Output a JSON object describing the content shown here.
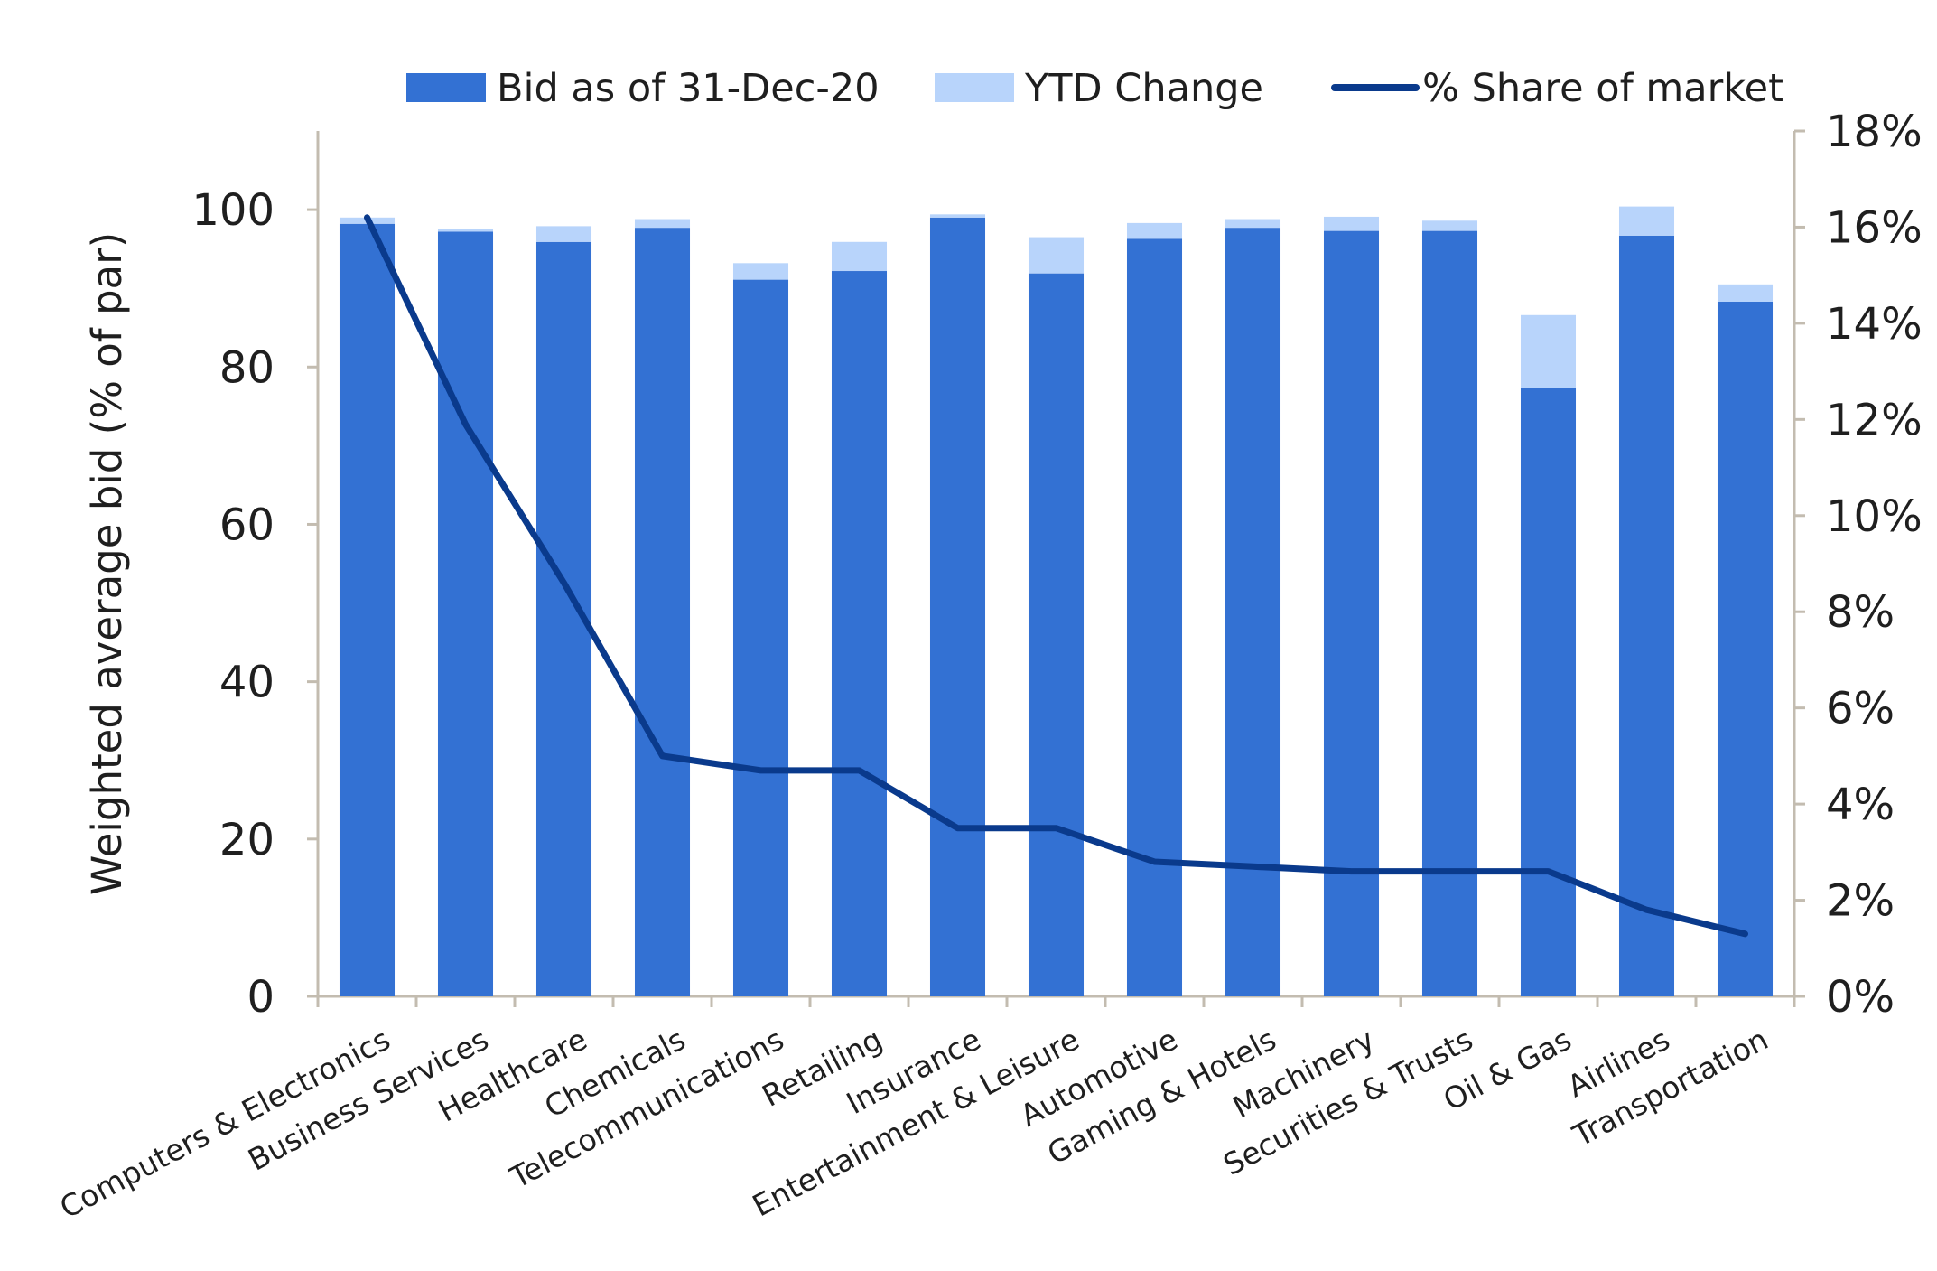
{
  "chart_data": {
    "type": "bar",
    "stacked": true,
    "categories": [
      "Computers & Electronics",
      "Business Services",
      "Healthcare",
      "Chemicals",
      "Telecommunications",
      "Retailing",
      "Insurance",
      "Entertainment & Leisure",
      "Automotive",
      "Gaming & Hotels",
      "Machinery",
      "Securities & Trusts",
      "Oil & Gas",
      "Airlines",
      "Transportation"
    ],
    "series": [
      {
        "name": "Bid as of 31-Dec-20",
        "type": "bar",
        "axis": "left",
        "color": "#3371d3",
        "values": [
          98.2,
          97.2,
          95.9,
          97.7,
          91.1,
          92.2,
          99.0,
          91.9,
          96.3,
          97.7,
          97.3,
          97.3,
          77.3,
          96.7,
          88.3
        ]
      },
      {
        "name": "YTD Change",
        "type": "bar",
        "axis": "left",
        "color": "#b8d4fb",
        "values": [
          0.8,
          0.4,
          2.0,
          1.1,
          2.1,
          3.7,
          0.4,
          4.6,
          2.0,
          1.1,
          1.8,
          1.3,
          9.3,
          3.7,
          2.2
        ]
      },
      {
        "name": "% Share of market",
        "type": "line",
        "axis": "right",
        "color": "#0a3a8c",
        "values": [
          16.2,
          11.9,
          8.6,
          5.0,
          4.7,
          4.7,
          3.5,
          3.5,
          2.8,
          2.7,
          2.6,
          2.6,
          2.6,
          1.8,
          1.3
        ]
      }
    ],
    "ylabel": "Weighted average bid (% of par)",
    "ylim": [
      0,
      110
    ],
    "yticks": [
      "0",
      "20",
      "40",
      "60",
      "80",
      "100"
    ],
    "y2lim": [
      0,
      18
    ],
    "y2ticks": [
      "0%",
      "2%",
      "4%",
      "6%",
      "8%",
      "10%",
      "12%",
      "14%",
      "16%",
      "18%"
    ],
    "legend_position": "top",
    "grid": false
  }
}
